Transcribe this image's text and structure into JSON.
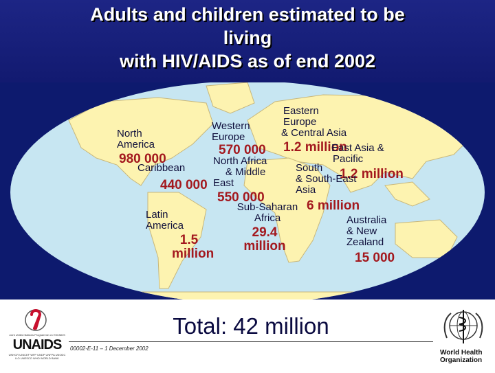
{
  "title": {
    "line1": "Adults and children estimated to be",
    "line2": "living",
    "line3": "with HIV/AIDS as of end 2002"
  },
  "regions": [
    {
      "id": "north-america",
      "name": [
        "North",
        "America"
      ],
      "value": "980 000"
    },
    {
      "id": "caribbean",
      "name": [
        "Caribbean"
      ],
      "value": "440 000"
    },
    {
      "id": "latin-america",
      "name": [
        "Latin",
        "America"
      ],
      "value": [
        "1.5",
        "million"
      ]
    },
    {
      "id": "western-europe",
      "name": [
        "Western",
        "Europe"
      ],
      "value": "570 000"
    },
    {
      "id": "north-africa",
      "name": [
        "North Africa",
        "& Middle",
        "East"
      ],
      "value": "550 000"
    },
    {
      "id": "sub-saharan",
      "name": [
        "Sub-Saharan",
        "Africa"
      ],
      "value": [
        "29.4",
        "million"
      ]
    },
    {
      "id": "eastern-europe",
      "name": [
        "Eastern",
        "Europe",
        "& Central Asia"
      ],
      "value": "1.2 million"
    },
    {
      "id": "east-asia",
      "name": [
        "East Asia &",
        "Pacific"
      ],
      "value": "1.2 million"
    },
    {
      "id": "south-asia",
      "name": [
        "South",
        "& South-East",
        "Asia"
      ],
      "value": "6 million"
    },
    {
      "id": "australia",
      "name": [
        "Australia",
        "& New",
        "Zealand"
      ],
      "value": "15 000"
    }
  ],
  "total": "Total: 42 million",
  "footer_code": "00002-E-11 – 1 December 2002",
  "logos": {
    "unaids_name": "UNAIDS",
    "unaids_tagline": "Joint United Nations Programme on HIV/AIDS",
    "unaids_cosponsors": "UNHCR UNICEF WFP UNDP UNFPA UNODC ILO UNESCO WHO WORLD BANK",
    "who_name": [
      "World Health",
      "Organization"
    ]
  },
  "colors": {
    "title_band": "#1d2585",
    "ocean": "#0d1a6e",
    "land": "#fdf3b0",
    "value_text": "#a3181e",
    "label_text": "#0d0d3a"
  }
}
